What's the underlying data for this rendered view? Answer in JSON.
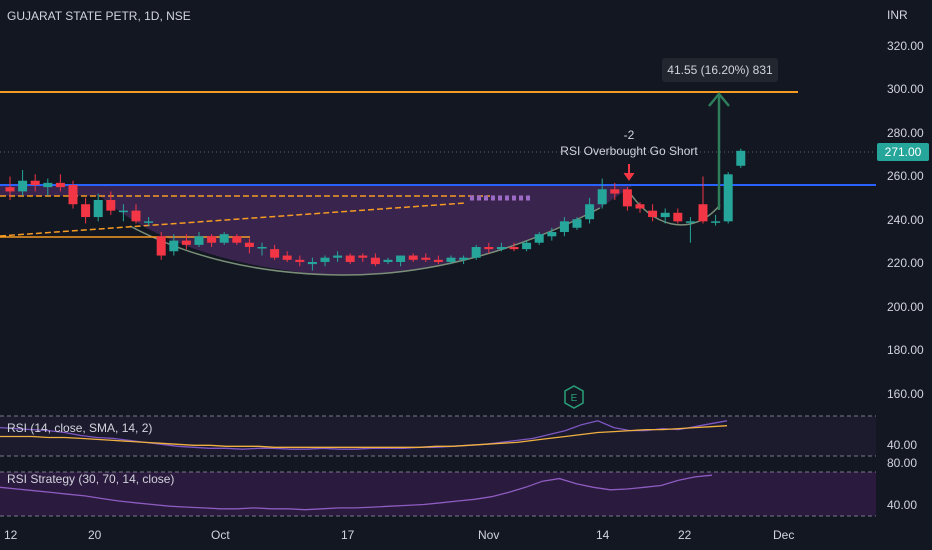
{
  "header": {
    "symbol_title": "GUJARAT STATE PETR, 1D, NSE",
    "currency": "INR"
  },
  "colors": {
    "bg": "#131722",
    "up": "#26a69a",
    "down": "#f23645",
    "orange": "#f59a23",
    "blue": "#2962ff",
    "purple_fill": "#6a3d8a",
    "rsi_line": "#7e57c2",
    "rsi_ma": "#f0b040",
    "price_tag": "#26a69a",
    "measure": "#2e7d5b"
  },
  "chart_data": [
    {
      "type": "candlestick",
      "title": "GUJARAT STATE PETR, 1D, NSE",
      "ylabel": "INR",
      "ylim": [
        140,
        330
      ],
      "y_ticks": [
        "320.00",
        "300.00",
        "280.00",
        "260.00",
        "240.00",
        "220.00",
        "200.00",
        "180.00",
        "160.00"
      ],
      "x_ticks": [
        "12",
        "20",
        "Oct",
        "17",
        "Nov",
        "14",
        "22",
        "Dec"
      ],
      "candles": [
        {
          "o": 254,
          "h": 259,
          "l": 248,
          "c": 252
        },
        {
          "o": 252,
          "h": 262,
          "l": 250,
          "c": 257
        },
        {
          "o": 257,
          "h": 260,
          "l": 252,
          "c": 255
        },
        {
          "o": 254,
          "h": 258,
          "l": 250,
          "c": 256
        },
        {
          "o": 256,
          "h": 260,
          "l": 252,
          "c": 254
        },
        {
          "o": 255,
          "h": 257,
          "l": 244,
          "c": 246
        },
        {
          "o": 246,
          "h": 249,
          "l": 237,
          "c": 240
        },
        {
          "o": 240,
          "h": 251,
          "l": 238,
          "c": 248
        },
        {
          "o": 248,
          "h": 252,
          "l": 241,
          "c": 243
        },
        {
          "o": 243,
          "h": 246,
          "l": 238,
          "c": 243
        },
        {
          "o": 243,
          "h": 246,
          "l": 237,
          "c": 238
        },
        {
          "o": 238,
          "h": 240,
          "l": 236,
          "c": 238
        },
        {
          "o": 231,
          "h": 233,
          "l": 220,
          "c": 222
        },
        {
          "o": 224,
          "h": 232,
          "l": 222,
          "c": 229
        },
        {
          "o": 229,
          "h": 232,
          "l": 225,
          "c": 227
        },
        {
          "o": 227,
          "h": 233,
          "l": 226,
          "c": 231
        },
        {
          "o": 231,
          "h": 232,
          "l": 226,
          "c": 228
        },
        {
          "o": 228,
          "h": 233,
          "l": 227,
          "c": 232
        },
        {
          "o": 231,
          "h": 232,
          "l": 227,
          "c": 228
        },
        {
          "o": 228,
          "h": 230,
          "l": 223,
          "c": 226
        },
        {
          "o": 226,
          "h": 228,
          "l": 222,
          "c": 226
        },
        {
          "o": 225,
          "h": 227,
          "l": 220,
          "c": 221
        },
        {
          "o": 222,
          "h": 224,
          "l": 219,
          "c": 220
        },
        {
          "o": 220,
          "h": 222,
          "l": 217,
          "c": 219
        },
        {
          "o": 218,
          "h": 221,
          "l": 215,
          "c": 219
        },
        {
          "o": 219,
          "h": 222,
          "l": 217,
          "c": 221
        },
        {
          "o": 221,
          "h": 224,
          "l": 219,
          "c": 222
        },
        {
          "o": 222,
          "h": 223,
          "l": 218,
          "c": 219
        },
        {
          "o": 222,
          "h": 223,
          "l": 219,
          "c": 221
        },
        {
          "o": 221,
          "h": 223,
          "l": 217,
          "c": 218
        },
        {
          "o": 219,
          "h": 221,
          "l": 218,
          "c": 220
        },
        {
          "o": 219,
          "h": 222,
          "l": 217,
          "c": 222
        },
        {
          "o": 222,
          "h": 223,
          "l": 219,
          "c": 220
        },
        {
          "o": 221,
          "h": 223,
          "l": 219,
          "c": 220
        },
        {
          "o": 220,
          "h": 222,
          "l": 218,
          "c": 219
        },
        {
          "o": 219,
          "h": 222,
          "l": 218,
          "c": 221
        },
        {
          "o": 220,
          "h": 222,
          "l": 218,
          "c": 221
        },
        {
          "o": 221,
          "h": 227,
          "l": 220,
          "c": 226
        },
        {
          "o": 226,
          "h": 228,
          "l": 223,
          "c": 225
        },
        {
          "o": 225,
          "h": 228,
          "l": 224,
          "c": 226
        },
        {
          "o": 226,
          "h": 228,
          "l": 224,
          "c": 225
        },
        {
          "o": 225,
          "h": 229,
          "l": 224,
          "c": 228
        },
        {
          "o": 228,
          "h": 233,
          "l": 227,
          "c": 232
        },
        {
          "o": 231,
          "h": 235,
          "l": 229,
          "c": 233
        },
        {
          "o": 233,
          "h": 240,
          "l": 231,
          "c": 238
        },
        {
          "o": 235,
          "h": 240,
          "l": 234,
          "c": 239
        },
        {
          "o": 239,
          "h": 249,
          "l": 237,
          "c": 246
        },
        {
          "o": 246,
          "h": 258,
          "l": 244,
          "c": 253
        },
        {
          "o": 253,
          "h": 256,
          "l": 248,
          "c": 251
        },
        {
          "o": 253,
          "h": 254,
          "l": 243,
          "c": 245
        },
        {
          "o": 246,
          "h": 247,
          "l": 242,
          "c": 244
        },
        {
          "o": 243,
          "h": 246,
          "l": 238,
          "c": 240
        },
        {
          "o": 240,
          "h": 244,
          "l": 237,
          "c": 242
        },
        {
          "o": 242,
          "h": 244,
          "l": 237,
          "c": 238
        },
        {
          "o": 238,
          "h": 240,
          "l": 228,
          "c": 238
        },
        {
          "o": 246,
          "h": 259,
          "l": 237,
          "c": 238
        },
        {
          "o": 238,
          "h": 241,
          "l": 236,
          "c": 238
        },
        {
          "o": 238,
          "h": 261,
          "l": 237,
          "c": 260
        },
        {
          "o": 264,
          "h": 272,
          "l": 263,
          "c": 271
        }
      ],
      "horizontal_lines": [
        {
          "name": "resistance",
          "value": 298.5,
          "color": "orange"
        },
        {
          "name": "neckline",
          "value": 255,
          "color": "blue"
        },
        {
          "name": "last-price",
          "value": 271,
          "color": "dotted"
        }
      ],
      "last_price_label": "271.00",
      "measure_label": "41.55 (16.20%) 831",
      "annotation_count": "-2",
      "annotation_text": "RSI Overbought Go Short"
    },
    {
      "type": "line",
      "title": "RSI (14, close, SMA, 14, 2)",
      "y_ticks": [
        "40.00"
      ],
      "series": [
        {
          "values": [
            55,
            54,
            53,
            52,
            50,
            47,
            45,
            44,
            42,
            40,
            38,
            36,
            35,
            34,
            34,
            33,
            34,
            34,
            33,
            33,
            34,
            33,
            33,
            34,
            34,
            34,
            35,
            35,
            36,
            37,
            38,
            40,
            42,
            44,
            48,
            52,
            58,
            62,
            55,
            52,
            52,
            54,
            53,
            56,
            59,
            62
          ]
        },
        {
          "values": [
            46,
            46,
            46,
            45,
            45,
            44,
            43,
            42,
            41,
            40,
            39,
            38,
            37,
            37,
            36,
            36,
            36,
            35,
            35,
            35,
            35,
            35,
            35,
            35,
            35,
            35,
            35,
            36,
            36,
            37,
            38,
            39,
            40,
            42,
            44,
            46,
            48,
            50,
            51,
            52,
            53,
            53,
            54,
            55,
            56,
            57
          ]
        }
      ]
    },
    {
      "type": "line",
      "title": "RSI Strategy (30, 70, 14, close)",
      "y_ticks": [
        "80.00",
        "40.00"
      ],
      "series": [
        {
          "values": [
            58,
            56,
            54,
            52,
            50,
            48,
            45,
            42,
            40,
            38,
            36,
            35,
            34,
            33,
            33,
            34,
            33,
            33,
            32,
            33,
            34,
            34,
            35,
            36,
            37,
            38,
            40,
            42,
            44,
            47,
            52,
            58,
            65,
            68,
            62,
            58,
            55,
            56,
            58,
            60,
            66,
            70,
            72
          ]
        }
      ]
    }
  ]
}
